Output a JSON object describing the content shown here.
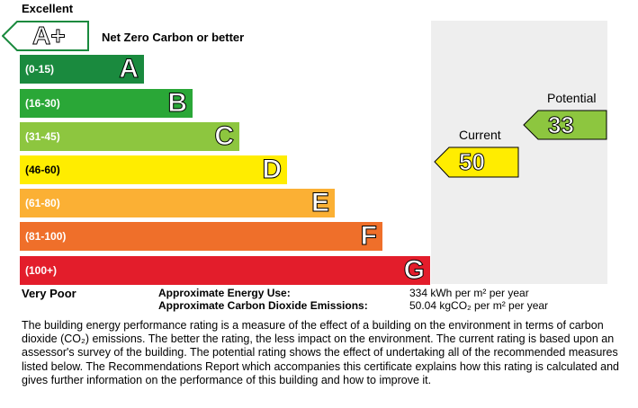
{
  "scale": {
    "top_label": "Excellent",
    "bottom_label": "Very Poor",
    "top_band": {
      "letter": "A+",
      "note": "Net Zero Carbon or better",
      "color": "#ffffff"
    },
    "bands": [
      {
        "letter": "A",
        "range": "(0-15)",
        "color": "#1a8a3e"
      },
      {
        "letter": "B",
        "range": "(16-30)",
        "color": "#2aa737"
      },
      {
        "letter": "C",
        "range": "(31-45)",
        "color": "#8dc63f"
      },
      {
        "letter": "D",
        "range": "(46-60)",
        "color": "#ffed00"
      },
      {
        "letter": "E",
        "range": "(61-80)",
        "color": "#fbb034"
      },
      {
        "letter": "F",
        "range": "(81-100)",
        "color": "#ef6f2a"
      },
      {
        "letter": "G",
        "range": "(100+)",
        "color": "#e31d2b"
      }
    ]
  },
  "current": {
    "label": "Current",
    "value": "50",
    "color": "#ffed00"
  },
  "potential": {
    "label": "Potential",
    "value": "33",
    "color": "#8dc63f"
  },
  "energy": {
    "use_label": "Approximate Energy Use:",
    "use_value": "334 kWh per m² per year",
    "co2_label": "Approximate Carbon Dioxide Emissions:",
    "co2_value": "50.04 kgCO₂ per m² per year"
  },
  "description": "The building energy performance rating is a measure of the effect of a building on the environment in terms of carbon dioxide (CO₂) emissions. The better the rating, the less impact on the environment. The current rating is based upon an assessor's survey of the building. The potential rating shows the effect of undertaking all of the recommended measures listed below. The Recommendations Report which accompanies this certificate explains how this rating is calculated and gives further information on the performance of this building and how to improve it."
}
